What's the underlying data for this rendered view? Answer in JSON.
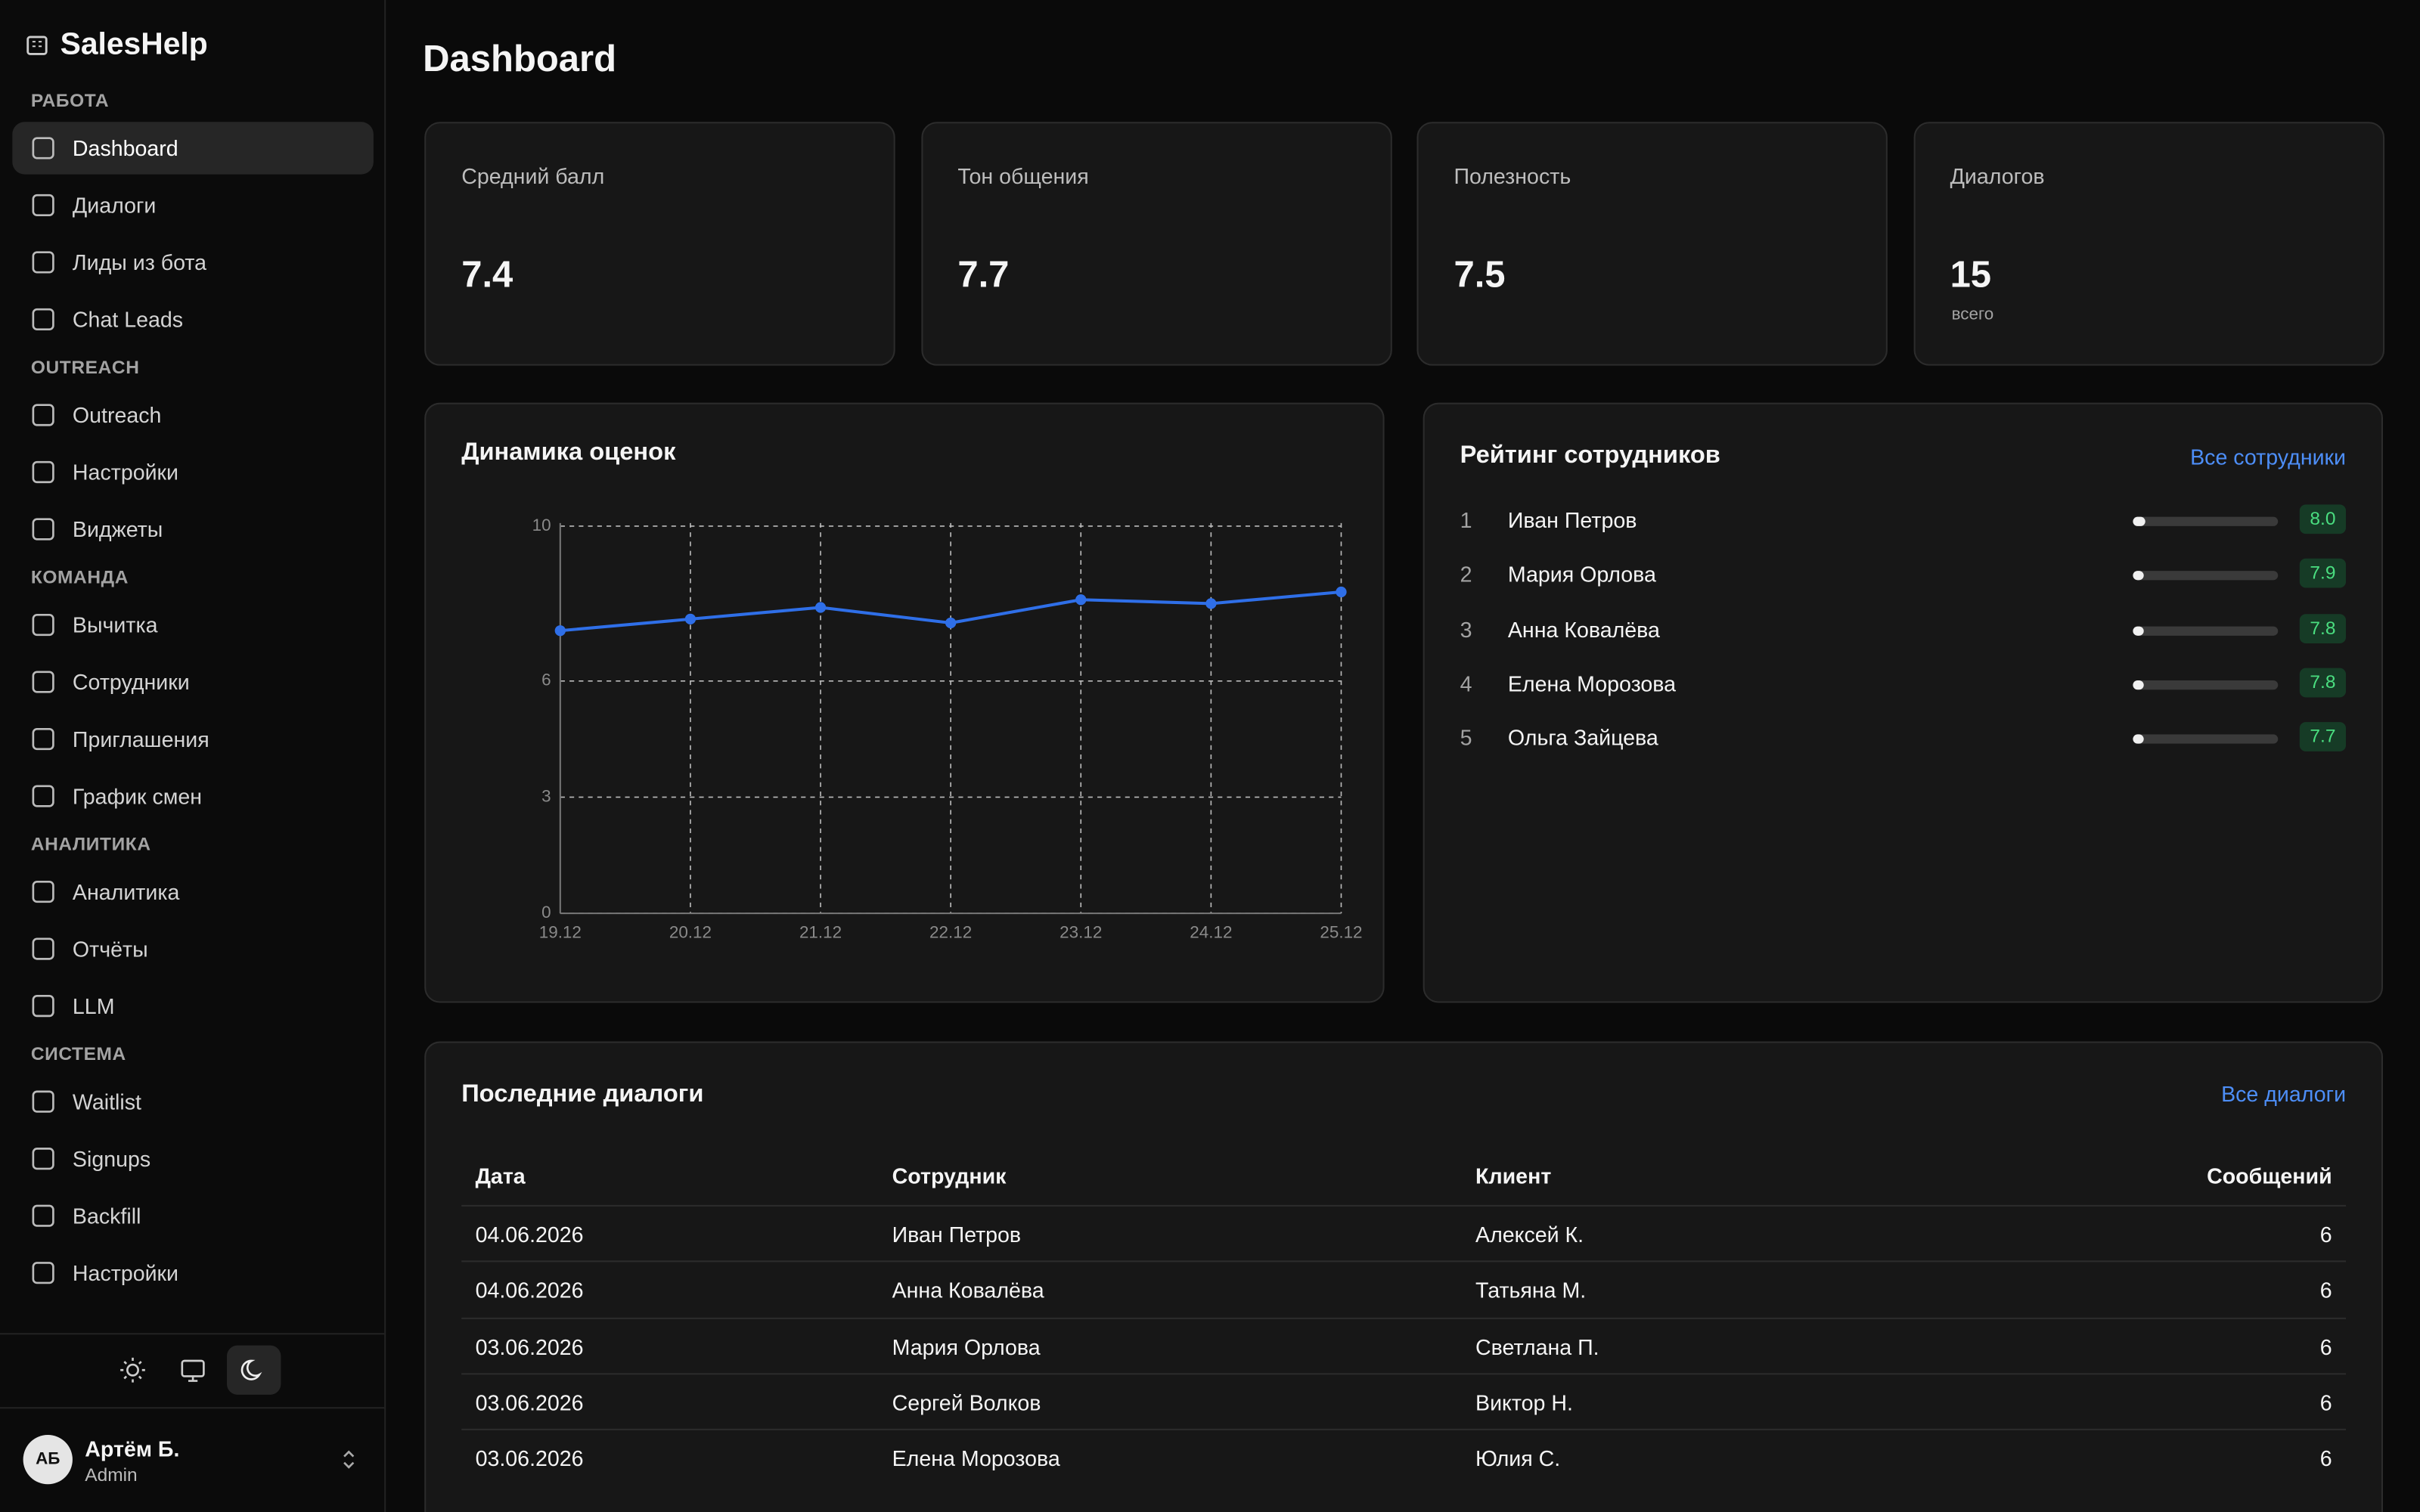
{
  "sidebar": {
    "brand": "SalesHelp",
    "sections": [
      {
        "title": "РАБОТА",
        "items": [
          "Dashboard",
          "Диалоги",
          "Лиды из бота",
          "Chat Leads"
        ]
      },
      {
        "title": "OUTREACH",
        "items": [
          "Outreach",
          "Настройки",
          "Виджеты"
        ]
      },
      {
        "title": "КОМАНДА",
        "items": [
          "Вычитка",
          "Сотрудники",
          "Приглашения",
          "График смен"
        ]
      },
      {
        "title": "АНАЛИТИКА",
        "items": [
          "Аналитика",
          "Отчёты",
          "LLM"
        ]
      },
      {
        "title": "СИСТЕМА",
        "items": [
          "Waitlist",
          "Signups",
          "Backfill",
          "Настройки"
        ]
      }
    ],
    "user": {
      "initials": "АБ",
      "name": "Артём Б.",
      "role": "Admin"
    }
  },
  "header": {
    "title": "Dashboard"
  },
  "stats": [
    {
      "label": "Средний балл",
      "value": "7.4"
    },
    {
      "label": "Тон общения",
      "value": "7.7"
    },
    {
      "label": "Полезность",
      "value": "7.5"
    },
    {
      "label": "Диалогов",
      "value": "15",
      "note": "всего"
    }
  ],
  "chart_data": {
    "type": "line",
    "title": "Динамика оценок",
    "x": [
      "19.12",
      "20.12",
      "21.12",
      "22.12",
      "23.12",
      "24.12",
      "25.12"
    ],
    "series": [
      {
        "color": "#2f6fe8",
        "values": [
          7.3,
          7.6,
          7.9,
          7.5,
          8.1,
          8.0,
          8.3
        ]
      }
    ],
    "ylim": [
      0,
      10
    ],
    "yticks": [
      0,
      3,
      6,
      10
    ],
    "grid": true
  },
  "rating": {
    "title": "Рейтинг сотрудников",
    "link": "Все сотрудники",
    "ranks": [
      1,
      2,
      3,
      4,
      5
    ],
    "names": [
      "Иван Петров",
      "Мария Орлова",
      "Анна Ковалёва",
      "Елена Морозова",
      "Ольга Зайцева"
    ],
    "values": [
      8.0,
      7.9,
      7.8,
      7.8,
      7.7
    ],
    "value_labels": [
      "8.0",
      "7.9",
      "7.8",
      "7.8",
      "7.7"
    ]
  },
  "table": {
    "title": "Последние диалоги",
    "link": "Все диалоги",
    "columns": [
      "Дата",
      "Сотрудник",
      "Клиент",
      "Сообщений"
    ],
    "rows": [
      [
        "04.06.2026",
        "Иван Петров",
        "Алексей К.",
        6
      ],
      [
        "04.06.2026",
        "Анна Ковалёва",
        "Татьяна М.",
        6
      ],
      [
        "03.06.2026",
        "Мария Орлова",
        "Светлана П.",
        6
      ],
      [
        "03.06.2026",
        "Сергей Волков",
        "Виктор Н.",
        6
      ],
      [
        "03.06.2026",
        "Елена Морозова",
        "Юлия С.",
        6
      ]
    ]
  }
}
